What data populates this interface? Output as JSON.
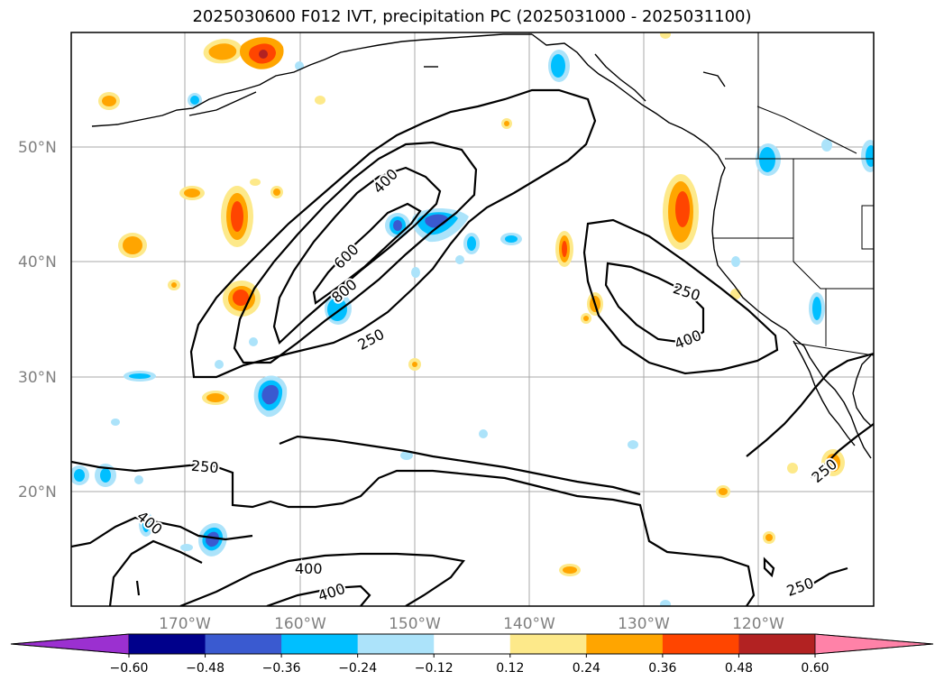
{
  "title": "2025030600 F012 IVT, precipitation PC (2025031000 - 2025031100)",
  "map": {
    "lat_labels": [
      "50°N",
      "40°N",
      "30°N",
      "20°N"
    ],
    "lon_labels": [
      "170°W",
      "160°W",
      "150°W",
      "140°W",
      "130°W",
      "120°W"
    ],
    "ivt_contour_labels": [
      "400",
      "600",
      "800",
      "250",
      "250",
      "400",
      "250",
      "400",
      "400",
      "400",
      "250",
      "250"
    ],
    "grid": true
  },
  "colorbar": {
    "ticks": [
      "−0.60",
      "−0.48",
      "−0.36",
      "−0.24",
      "−0.12",
      "0.12",
      "0.24",
      "0.36",
      "0.48",
      "0.60"
    ],
    "colors": [
      "#9b30d0",
      "#00008b",
      "#3a5ad0",
      "#00bfff",
      "#ace3fa",
      "#ffffff",
      "#fde98a",
      "#ffa500",
      "#ff4500",
      "#b22222",
      "#ff82a8"
    ],
    "extend": "both"
  }
}
